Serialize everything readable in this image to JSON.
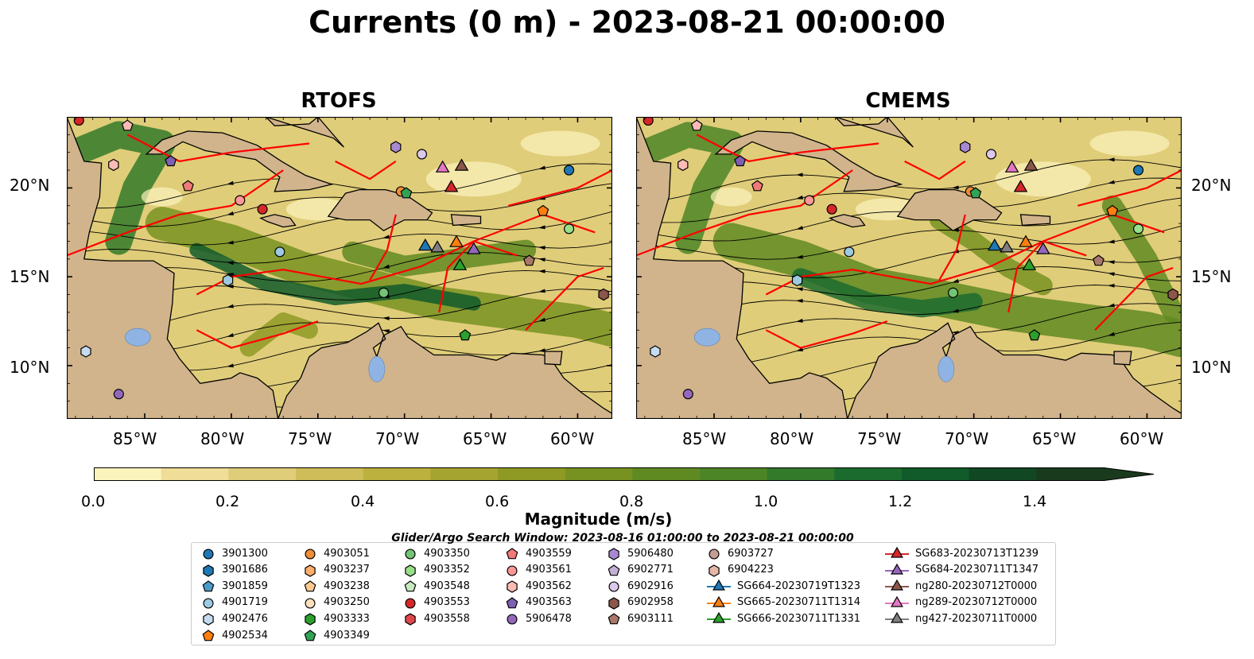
{
  "title": "Currents (0 m) - 2023-08-21 00:00:00",
  "panels": [
    {
      "title": "RTOFS"
    },
    {
      "title": "CMEMS"
    }
  ],
  "axes": {
    "lon_labels": [
      "85°W",
      "80°W",
      "75°W",
      "70°W",
      "65°W",
      "60°W"
    ],
    "lat_labels": [
      "20°N",
      "15°N",
      "10°N"
    ],
    "lon_range": [
      -89.5,
      -58.0
    ],
    "lat_range": [
      7.0,
      24.0
    ]
  },
  "colorbar": {
    "label": "Magnitude (m/s)",
    "ticks": [
      "0.0",
      "0.2",
      "0.4",
      "0.6",
      "0.8",
      "1.0",
      "1.2",
      "1.4"
    ],
    "range": [
      0.0,
      1.5
    ],
    "step": 0.1,
    "extend": "max",
    "colors": [
      "#fbf4bd",
      "#efdd98",
      "#e0cd79",
      "#cfbd59",
      "#bcb13e",
      "#a6a430",
      "#8f9a24",
      "#789221",
      "#5f8a22",
      "#4b8526",
      "#337a2a",
      "#1c6b2e",
      "#115a2a",
      "#114823",
      "#1a3a1e"
    ]
  },
  "legend": {
    "title": "Glider/Argo Search Window: 2023-08-16 01:00:00 to 2023-08-21 00:00:00",
    "columns": [
      [
        {
          "label": "3901300",
          "marker": "circle",
          "color": "#1f77b4"
        },
        {
          "label": "3901686",
          "marker": "hexagon",
          "color": "#1f77b4"
        },
        {
          "label": "3901859",
          "marker": "pentagon",
          "color": "#4c9ac9"
        },
        {
          "label": "4901719",
          "marker": "circle",
          "color": "#9ecae1"
        },
        {
          "label": "4902476",
          "marker": "hexagon",
          "color": "#c6dbef"
        },
        {
          "label": "4902534",
          "marker": "pentagon",
          "color": "#ff7f0e"
        }
      ],
      [
        {
          "label": "4903051",
          "marker": "circle",
          "color": "#f28c36"
        },
        {
          "label": "4903237",
          "marker": "hexagon",
          "color": "#fdae6b"
        },
        {
          "label": "4903238",
          "marker": "pentagon",
          "color": "#fdc992"
        },
        {
          "label": "4903250",
          "marker": "circle",
          "color": "#fee0bd"
        },
        {
          "label": "4903333",
          "marker": "hexagon",
          "color": "#2ca02c"
        },
        {
          "label": "4903349",
          "marker": "pentagon",
          "color": "#31a354"
        }
      ],
      [
        {
          "label": "4903350",
          "marker": "circle",
          "color": "#74c476"
        },
        {
          "label": "4903352",
          "marker": "hexagon",
          "color": "#98df8a"
        },
        {
          "label": "4903548",
          "marker": "pentagon",
          "color": "#c7e9c0"
        },
        {
          "label": "4903553",
          "marker": "circle",
          "color": "#d62728"
        },
        {
          "label": "4903558",
          "marker": "hexagon",
          "color": "#e0474c"
        }
      ],
      [
        {
          "label": "4903559",
          "marker": "pentagon",
          "color": "#f07a7a"
        },
        {
          "label": "4903561",
          "marker": "circle",
          "color": "#ff9896"
        },
        {
          "label": "4903562",
          "marker": "hexagon",
          "color": "#fcbbb5"
        },
        {
          "label": "4903563",
          "marker": "pentagon",
          "color": "#7e5fb3"
        },
        {
          "label": "5906478",
          "marker": "circle",
          "color": "#9467bd"
        }
      ],
      [
        {
          "label": "5906480",
          "marker": "hexagon",
          "color": "#a889d1"
        },
        {
          "label": "6902771",
          "marker": "pentagon",
          "color": "#c5b0d5"
        },
        {
          "label": "6902916",
          "marker": "circle",
          "color": "#dcc8ea"
        },
        {
          "label": "6902958",
          "marker": "hexagon",
          "color": "#8c564b"
        },
        {
          "label": "6903111",
          "marker": "pentagon",
          "color": "#a9786a"
        }
      ],
      [
        {
          "label": "6903727",
          "marker": "circle",
          "color": "#c49c94"
        },
        {
          "label": "6904223",
          "marker": "hexagon",
          "color": "#e6b7a9"
        },
        {
          "label": "SG664-20230719T1323",
          "marker": "triangle",
          "color": "#1f77b4"
        },
        {
          "label": "SG665-20230711T1314",
          "marker": "triangle",
          "color": "#ff7f0e"
        },
        {
          "label": "SG666-20230711T1331",
          "marker": "triangle",
          "color": "#2ca02c"
        }
      ],
      [
        {
          "label": "SG683-20230713T1239",
          "marker": "triangle",
          "color": "#d62728"
        },
        {
          "label": "SG684-20230711T1347",
          "marker": "triangle",
          "color": "#9467bd"
        },
        {
          "label": "ng280-20230712T0000",
          "marker": "triangle",
          "color": "#8c564b"
        },
        {
          "label": "ng289-20230712T0000",
          "marker": "triangle",
          "color": "#e377c2"
        },
        {
          "label": "ng427-20230711T0000",
          "marker": "triangle",
          "color": "#7f7f7f"
        }
      ]
    ]
  },
  "colors": {
    "land": "#d1b48c",
    "eez_boundary": "#ff0000",
    "coastline": "#000000",
    "streamline": "#000000",
    "lake": "#8fb4e3"
  }
}
